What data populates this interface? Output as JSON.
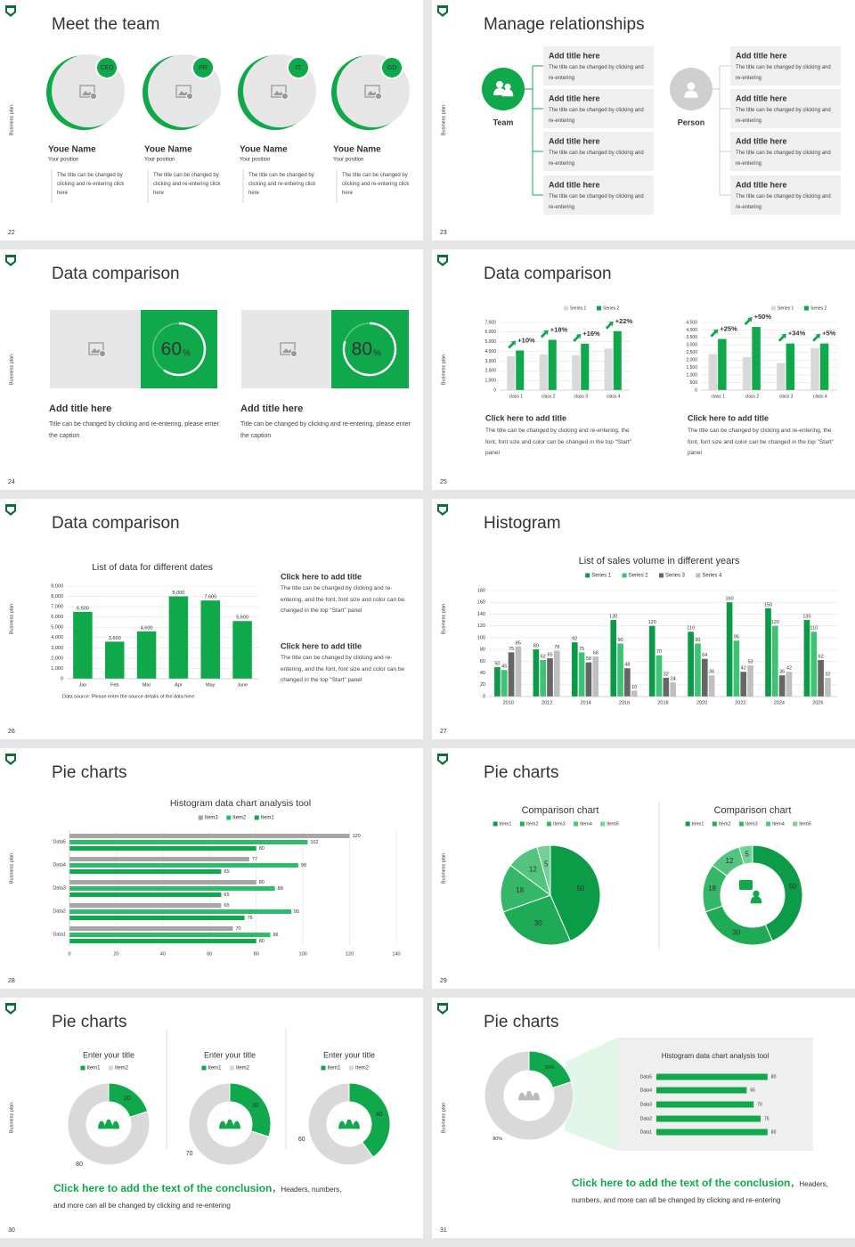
{
  "side": "Business plan",
  "slides": [
    {
      "number": 22,
      "title": "Meet the team",
      "members": [
        {
          "badge": "CEO",
          "name": "Youe Name",
          "position": "Your position",
          "text": "The title can be changed by clicking and re-entering click here"
        },
        {
          "badge": "PR",
          "name": "Youe Name",
          "position": "Your position",
          "text": "The title can be changed by clicking and re-entering click here"
        },
        {
          "badge": "IT",
          "name": "Youe Name",
          "position": "Your position",
          "text": "The title can be changed by clicking and re-entering click here"
        },
        {
          "badge": "GD",
          "name": "Youe Name",
          "position": "Your position",
          "text": "The title can be changed by clicking and re-entering click here"
        }
      ]
    },
    {
      "number": 23,
      "title": "Manage relationships",
      "groups": [
        {
          "label": "Team",
          "boxes": [
            {
              "title": "Add title here",
              "text": "The title can be changed by clicking and re-entering"
            },
            {
              "title": "Add title here",
              "text": "The title can be changed by clicking and re-entering"
            },
            {
              "title": "Add title here",
              "text": "The title can be changed by clicking and re-entering"
            },
            {
              "title": "Add title here",
              "text": "The title can be changed by clicking and re-entering"
            }
          ]
        },
        {
          "label": "Person",
          "boxes": [
            {
              "title": "Add title here",
              "text": "The title can be changed by clicking and re-entering"
            },
            {
              "title": "Add title here",
              "text": "The title can be changed by clicking and re-entering"
            },
            {
              "title": "Add title here",
              "text": "The title can be changed by clicking and re-entering"
            },
            {
              "title": "Add title here",
              "text": "The title can be changed by clicking and re-entering"
            }
          ]
        }
      ]
    },
    {
      "number": 24,
      "title": "Data comparison",
      "panels": [
        {
          "percent": 60,
          "unit": "%",
          "title": "Add title here",
          "text": "Title can be changed by clicking and re-entering, please enter the caption"
        },
        {
          "percent": 80,
          "unit": "%",
          "title": "Add title here",
          "text": "Title can be changed by clicking and re-entering, please enter the caption"
        }
      ]
    },
    {
      "number": 25,
      "title": "Data comparison",
      "charts": [
        {
          "type": "bar",
          "categories": [
            "class 1",
            "class 2",
            "class 3",
            "class 4"
          ],
          "series": [
            {
              "name": "Series 1",
              "color": "#d9d9d9",
              "values": [
                3500,
                3700,
                3600,
                4300
              ]
            },
            {
              "name": "Series 2",
              "color": "#0fa84b",
              "values": [
                4100,
                5200,
                4800,
                6100
              ]
            }
          ],
          "annotations": [
            "+10%",
            "+18%",
            "+16%",
            "+22%"
          ],
          "ylim": [
            0,
            7000
          ],
          "yticks": [
            0,
            {
              "value": 1000,
              "label": "1,000"
            },
            {
              "value": 2000,
              "label": "2,000"
            },
            {
              "value": 3000,
              "label": "3,000"
            },
            {
              "value": 4000,
              "label": "4,000"
            },
            {
              "value": 5000,
              "label": "5,000"
            },
            {
              "value": 6000,
              "label": "6,000"
            },
            {
              "value": 7000,
              "label": "7,000"
            }
          ],
          "caption_title": "Click here to add title",
          "caption": "The title can be changed by clicking and re-entering, the font, font size and color can be changed in the top \"Start\" panel"
        },
        {
          "type": "bar",
          "categories": [
            "class 1",
            "class 2",
            "class 3",
            "class 4"
          ],
          "series": [
            {
              "name": "Series 1",
              "color": "#d9d9d9",
              "values": [
                2400,
                2200,
                1800,
                2800
              ]
            },
            {
              "name": "Series 2",
              "color": "#0fa84b",
              "values": [
                3400,
                4200,
                3100,
                3100
              ]
            }
          ],
          "annotations": [
            "+25%",
            "+50%",
            "+34%",
            "+5%"
          ],
          "ylim": [
            0,
            4500
          ],
          "yticks": [
            0,
            500,
            {
              "value": 1000,
              "label": "1,000"
            },
            {
              "value": 1500,
              "label": "1,500"
            },
            {
              "value": 2000,
              "label": "2,000"
            },
            {
              "value": 2500,
              "label": "2,500"
            },
            {
              "value": 3000,
              "label": "3,000"
            },
            {
              "value": 3500,
              "label": "3,500"
            },
            {
              "value": 4000,
              "label": "4,000"
            },
            {
              "value": 4500,
              "label": "4,500"
            }
          ],
          "caption_title": "Click here to add title",
          "caption": "The title can be changed by clicking and re-entering, the font, font size and color can be changed in the top \"Start\" panel"
        }
      ]
    },
    {
      "number": 26,
      "title": "Data comparison",
      "chart": {
        "type": "bar",
        "title": "List of data for different dates",
        "categories": [
          "Jan",
          "Feb",
          "Mar",
          "Apr",
          "May",
          "June"
        ],
        "values": [
          6500,
          3600,
          4600,
          8000,
          7600,
          5600
        ],
        "value_labels": [
          "6,500",
          "3,600",
          "4,600",
          "8,000",
          "7,600",
          "5,600"
        ],
        "color": "#0fa84b",
        "ylim": [
          0,
          9000
        ],
        "yticks": [
          0,
          {
            "value": 1000,
            "label": "1,000"
          },
          {
            "value": 2000,
            "label": "2,000"
          },
          {
            "value": 3000,
            "label": "3,000"
          },
          {
            "value": 4000,
            "label": "4,000"
          },
          {
            "value": 5000,
            "label": "5,000"
          },
          {
            "value": 6000,
            "label": "6,000"
          },
          {
            "value": 7000,
            "label": "7,000"
          },
          {
            "value": 8000,
            "label": "8,000"
          },
          {
            "value": 9000,
            "label": "9,000"
          }
        ],
        "note": "Data source: Please enter the source details of the data here"
      },
      "blocks": [
        {
          "title": "Click here to add title",
          "text": "The title can be changed by clicking and re-entering, and the font, font size and color can be changed in the top \"Start\" panel"
        },
        {
          "title": "Click here to add title",
          "text": "The title can be changed by clicking and re-entering, and the font, font size and color can be changed in the top \"Start\" panel"
        }
      ]
    },
    {
      "number": 27,
      "title": "Histogram",
      "chart": {
        "type": "bar",
        "title": "List of sales volume in different years",
        "categories": [
          "2010",
          "2012",
          "2014",
          "2016",
          "2018",
          "2020",
          "2022",
          "2024",
          "2026"
        ],
        "series": [
          {
            "name": "Series 1",
            "color": "#0c9a48",
            "values": [
              50,
              80,
              92,
              130,
              120,
              110,
              160,
              150,
              130
            ]
          },
          {
            "name": "Series 2",
            "color": "#3cc474",
            "values": [
              45,
              62,
              75,
              90,
              70,
              90,
              95,
              120,
              110
            ]
          },
          {
            "name": "Series 3",
            "color": "#666666",
            "values": [
              75,
              65,
              58,
              48,
              32,
              64,
              42,
              36,
              62
            ]
          },
          {
            "name": "Series 4",
            "color": "#bfbfbf",
            "values": [
              85,
              78,
              68,
              10,
              24,
              36,
              53,
              42,
              32
            ]
          }
        ],
        "ylim": [
          0,
          180
        ],
        "yticks": [
          0,
          20,
          40,
          60,
          80,
          100,
          120,
          140,
          160,
          180
        ]
      }
    },
    {
      "number": 28,
      "title": "Pie charts",
      "chart": {
        "type": "barh",
        "title": "Histogram data chart analysis tool",
        "categories": [
          "Data1",
          "Data2",
          "Data3",
          "Data4",
          "Data5"
        ],
        "series": [
          {
            "name": "Item3",
            "color": "#a6a6a6",
            "values": [
              70,
              65,
              80,
              77,
              120
            ]
          },
          {
            "name": "Item2",
            "color": "#2dbd6a",
            "values": [
              86,
              95,
              88,
              98,
              102
            ]
          },
          {
            "name": "Item1",
            "color": "#0fa84b",
            "values": [
              80,
              75,
              65,
              65,
              80
            ]
          }
        ],
        "xlim": [
          0,
          140
        ],
        "xticks": [
          0,
          20,
          40,
          60,
          80,
          100,
          120,
          140
        ],
        "grid": true
      }
    },
    {
      "number": 29,
      "title": "Pie charts",
      "charts": [
        {
          "type": "pie",
          "title": "Comparison chart",
          "categories": [
            "Item1",
            "Item2",
            "Item3",
            "Item4",
            "Item5"
          ],
          "values": [
            50,
            30,
            18,
            12,
            5
          ],
          "colors": [
            "#0c9c48",
            "#1faa56",
            "#36b768",
            "#52c47e",
            "#72d197"
          ]
        },
        {
          "type": "donut",
          "title": "Comparison chart",
          "categories": [
            "Item1",
            "Item2",
            "Item3",
            "Item4",
            "Item5"
          ],
          "values": [
            50,
            30,
            18,
            12,
            5
          ],
          "colors": [
            "#0c9c48",
            "#1faa56",
            "#36b768",
            "#52c47e",
            "#72d197"
          ]
        }
      ]
    },
    {
      "number": 30,
      "title": "Pie charts",
      "charts": [
        {
          "type": "donut",
          "title": "Enter your title",
          "categories": [
            "Item1",
            "Item2"
          ],
          "values": [
            20,
            80
          ],
          "colors": [
            "#0fa84b",
            "#d9d9d9"
          ]
        },
        {
          "type": "donut",
          "title": "Enter your title",
          "categories": [
            "Item1",
            "Item2"
          ],
          "values": [
            30,
            70
          ],
          "colors": [
            "#0fa84b",
            "#d9d9d9"
          ]
        },
        {
          "type": "donut",
          "title": "Enter your title",
          "categories": [
            "Item1",
            "Item2"
          ],
          "values": [
            40,
            60
          ],
          "colors": [
            "#0fa84b",
            "#d9d9d9"
          ]
        }
      ],
      "conclusion": {
        "title": "Click here to add the text of the conclusion",
        "separator": "，",
        "text": "Headers, numbers, and more can all be changed by clicking and re-entering"
      }
    },
    {
      "number": 31,
      "title": "Pie charts",
      "charts": [
        {
          "type": "donut",
          "values": [
            20,
            80
          ],
          "value_labels": [
            "20%",
            "80%"
          ],
          "colors": [
            "#0fa84b",
            "#d9d9d9"
          ]
        },
        {
          "type": "barh",
          "title": "Histogram data chart analysis tool",
          "categories": [
            "Data5",
            "Data4",
            "Data3",
            "Data2",
            "Data1"
          ],
          "values": [
            80,
            65,
            70,
            75,
            80
          ],
          "color": "#0fa84b"
        }
      ],
      "conclusion": {
        "title": "Click here to add the text of the conclusion",
        "separator": "，",
        "text": "Headers, numbers, and more can all be changed by clicking and re-entering"
      }
    }
  ]
}
